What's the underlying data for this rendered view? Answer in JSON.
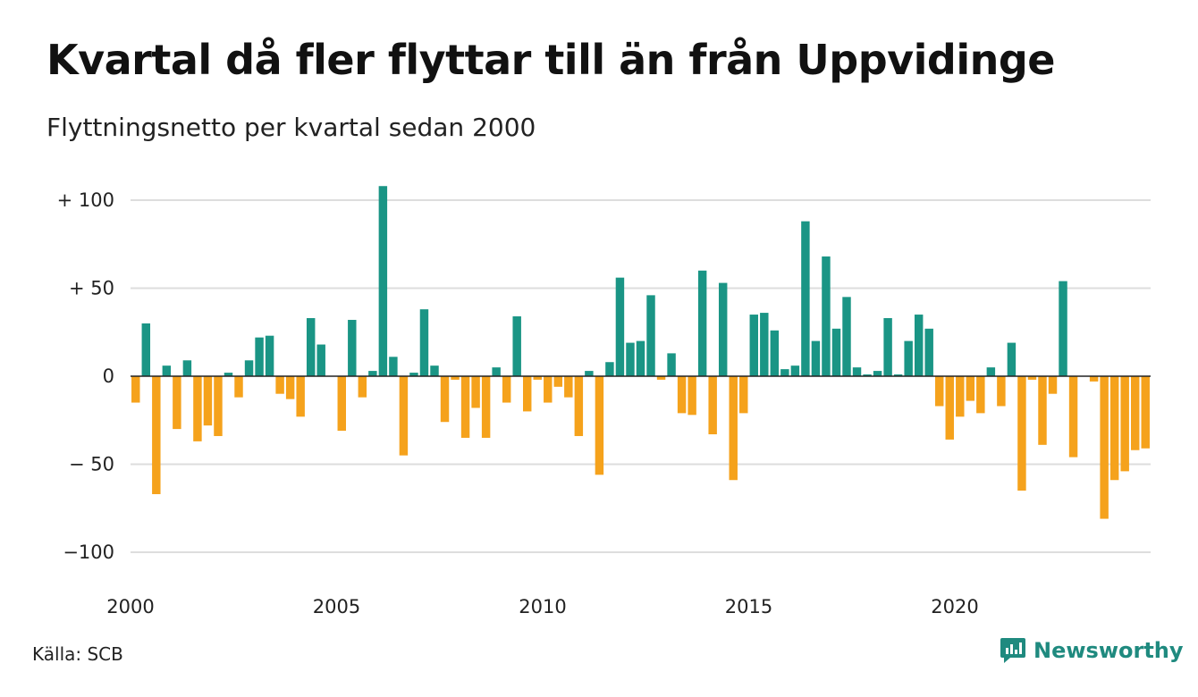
{
  "header": {
    "title": "Kvartal då fler flyttar till än från Uppvidinge",
    "subtitle": "Flyttningsnetto per kvartal sedan 2000"
  },
  "footer": {
    "source": "Källa: SCB",
    "brand": "Newsworthy"
  },
  "colors": {
    "positive": "#1a9585",
    "negative": "#f5a21c",
    "grid": "#dddddd",
    "zero_line": "#222222",
    "brand": "#1f8a7f"
  },
  "icons": {
    "brand_logo": "chat-bubble-chart-icon"
  },
  "chart_data": {
    "type": "bar",
    "title": "Kvartal då fler flyttar till än från Uppvidinge",
    "subtitle": "Flyttningsnetto per kvartal sedan 2000",
    "xlabel": "",
    "ylabel": "",
    "ylim": [
      -100,
      110
    ],
    "y_ticks": [
      {
        "value": 100,
        "label": "+ 100"
      },
      {
        "value": 50,
        "label": "+  50"
      },
      {
        "value": 0,
        "label": "0"
      },
      {
        "value": -50,
        "label": "− 50"
      },
      {
        "value": -100,
        "label": "−100"
      }
    ],
    "x_ticks": [
      {
        "year": 2000,
        "label": "2000"
      },
      {
        "year": 2005,
        "label": "2005"
      },
      {
        "year": 2010,
        "label": "2010"
      },
      {
        "year": 2015,
        "label": "2015"
      },
      {
        "year": 2020,
        "label": "2020"
      }
    ],
    "grid": true,
    "legend": "none",
    "start_year": 2000,
    "quarters_per_year": 4,
    "values": [
      -15,
      30,
      -67,
      6,
      -30,
      9,
      -37,
      -28,
      -34,
      2,
      -12,
      9,
      22,
      23,
      -10,
      -13,
      -23,
      33,
      18,
      0,
      -31,
      32,
      -12,
      3,
      108,
      11,
      -45,
      2,
      38,
      6,
      -26,
      -2,
      -35,
      -18,
      -35,
      5,
      -15,
      34,
      -20,
      -2,
      -15,
      -6,
      -12,
      -34,
      3,
      -56,
      8,
      56,
      19,
      20,
      46,
      -2,
      13,
      -21,
      -22,
      60,
      -33,
      53,
      -59,
      -21,
      35,
      36,
      26,
      4,
      6,
      88,
      20,
      68,
      27,
      45,
      5,
      1,
      3,
      33,
      1,
      20,
      35,
      27,
      -17,
      -36,
      -23,
      -14,
      -21,
      5,
      -17,
      19,
      -65,
      -2,
      -39,
      -10,
      54,
      -46,
      0,
      -3,
      -81,
      -59,
      -54,
      -42,
      -41
    ]
  }
}
